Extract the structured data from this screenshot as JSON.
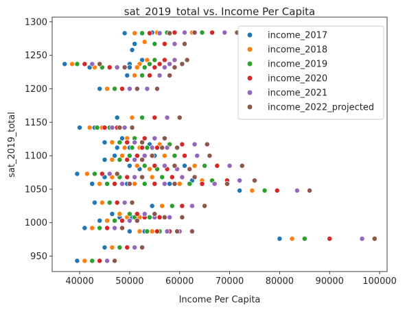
{
  "chart_data": {
    "type": "scatter",
    "title": "sat_2019_total vs. Income Per Capita",
    "xlabel": "Income Per Capita",
    "ylabel": "sat_2019_total",
    "xlim": [
      34500,
      101500
    ],
    "ylim": [
      927,
      1307
    ],
    "xticks": [
      40000,
      50000,
      60000,
      70000,
      80000,
      90000,
      100000
    ],
    "yticks": [
      950,
      1000,
      1050,
      1100,
      1150,
      1200,
      1250,
      1300
    ],
    "legend_position": "upper-right",
    "grid": false,
    "series": [
      {
        "name": "income_2017",
        "color": "#1f77b4",
        "points": [
          [
            49000,
            1283
          ],
          [
            51000,
            1267
          ],
          [
            50500,
            1258
          ],
          [
            54500,
            1284
          ],
          [
            61000,
            1284
          ],
          [
            52500,
            1243
          ],
          [
            50000,
            1237
          ],
          [
            37000,
            1237
          ],
          [
            42000,
            1232
          ],
          [
            50000,
            1232
          ],
          [
            49500,
            1220
          ],
          [
            44000,
            1200
          ],
          [
            47000,
            1200
          ],
          [
            47500,
            1157
          ],
          [
            40000,
            1142
          ],
          [
            43000,
            1142
          ],
          [
            48500,
            1126
          ],
          [
            45000,
            1120
          ],
          [
            47500,
            1112
          ],
          [
            50000,
            1112
          ],
          [
            54000,
            1117
          ],
          [
            47000,
            1100
          ],
          [
            55000,
            1100
          ],
          [
            45000,
            1094
          ],
          [
            50000,
            1085
          ],
          [
            52000,
            1080
          ],
          [
            61000,
            1085
          ],
          [
            45000,
            1068
          ],
          [
            52500,
            1068
          ],
          [
            39500,
            1073
          ],
          [
            42500,
            1058
          ],
          [
            49500,
            1058
          ],
          [
            58000,
            1058
          ],
          [
            62500,
            1063
          ],
          [
            72000,
            1048
          ],
          [
            43000,
            1030
          ],
          [
            46500,
            1013
          ],
          [
            54500,
            1025
          ],
          [
            48000,
            1008
          ],
          [
            50500,
            1008
          ],
          [
            44000,
            1003
          ],
          [
            41000,
            992
          ],
          [
            50000,
            987
          ],
          [
            53000,
            987
          ],
          [
            80000,
            976
          ],
          [
            45000,
            963
          ],
          [
            39500,
            943
          ]
        ]
      },
      {
        "name": "income_2018",
        "color": "#ff7f0e",
        "points": [
          [
            51000,
            1283
          ],
          [
            53000,
            1270
          ],
          [
            55500,
            1284
          ],
          [
            62500,
            1284
          ],
          [
            53500,
            1243
          ],
          [
            52000,
            1237
          ],
          [
            38500,
            1237
          ],
          [
            43000,
            1232
          ],
          [
            51500,
            1232
          ],
          [
            51000,
            1220
          ],
          [
            45500,
            1200
          ],
          [
            48500,
            1200
          ],
          [
            50500,
            1157
          ],
          [
            42000,
            1142
          ],
          [
            44500,
            1142
          ],
          [
            49500,
            1126
          ],
          [
            46500,
            1120
          ],
          [
            49000,
            1112
          ],
          [
            52000,
            1112
          ],
          [
            56000,
            1117
          ],
          [
            48500,
            1100
          ],
          [
            57000,
            1100
          ],
          [
            46500,
            1094
          ],
          [
            51500,
            1085
          ],
          [
            54000,
            1080
          ],
          [
            63000,
            1085
          ],
          [
            46500,
            1068
          ],
          [
            54500,
            1068
          ],
          [
            41500,
            1073
          ],
          [
            44000,
            1058
          ],
          [
            51000,
            1058
          ],
          [
            60000,
            1058
          ],
          [
            64500,
            1063
          ],
          [
            74500,
            1048
          ],
          [
            44500,
            1030
          ],
          [
            48000,
            1013
          ],
          [
            56500,
            1025
          ],
          [
            49500,
            1008
          ],
          [
            52000,
            1008
          ],
          [
            45500,
            1003
          ],
          [
            42500,
            992
          ],
          [
            52000,
            987
          ],
          [
            54500,
            987
          ],
          [
            82500,
            976
          ],
          [
            46500,
            963
          ],
          [
            41000,
            943
          ]
        ]
      },
      {
        "name": "income_2019",
        "color": "#2ca02c",
        "points": [
          [
            52500,
            1283
          ],
          [
            55000,
            1267
          ],
          [
            57500,
            1284
          ],
          [
            64500,
            1284
          ],
          [
            55000,
            1243
          ],
          [
            54000,
            1237
          ],
          [
            39500,
            1237
          ],
          [
            44500,
            1232
          ],
          [
            53000,
            1232
          ],
          [
            52500,
            1220
          ],
          [
            47000,
            1200
          ],
          [
            50000,
            1200
          ],
          [
            52500,
            1157
          ],
          [
            43500,
            1142
          ],
          [
            46000,
            1142
          ],
          [
            51000,
            1126
          ],
          [
            48000,
            1120
          ],
          [
            50500,
            1112
          ],
          [
            53500,
            1112
          ],
          [
            58000,
            1117
          ],
          [
            50000,
            1100
          ],
          [
            59000,
            1100
          ],
          [
            48000,
            1094
          ],
          [
            53000,
            1085
          ],
          [
            55500,
            1080
          ],
          [
            65000,
            1085
          ],
          [
            48000,
            1068
          ],
          [
            56500,
            1068
          ],
          [
            43000,
            1073
          ],
          [
            45500,
            1058
          ],
          [
            53000,
            1058
          ],
          [
            62000,
            1058
          ],
          [
            66500,
            1063
          ],
          [
            77000,
            1048
          ],
          [
            46000,
            1030
          ],
          [
            50000,
            1013
          ],
          [
            58500,
            1025
          ],
          [
            51000,
            1008
          ],
          [
            54000,
            1008
          ],
          [
            47000,
            1003
          ],
          [
            44000,
            992
          ],
          [
            53500,
            987
          ],
          [
            56000,
            987
          ],
          [
            85000,
            976
          ],
          [
            48000,
            963
          ],
          [
            42500,
            943
          ]
        ]
      },
      {
        "name": "income_2020",
        "color": "#d62728",
        "points": [
          [
            54000,
            1283
          ],
          [
            57000,
            1267
          ],
          [
            59000,
            1284
          ],
          [
            66500,
            1284
          ],
          [
            57000,
            1243
          ],
          [
            56000,
            1237
          ],
          [
            41000,
            1237
          ],
          [
            46000,
            1232
          ],
          [
            55000,
            1232
          ],
          [
            54000,
            1220
          ],
          [
            48500,
            1200
          ],
          [
            51500,
            1200
          ],
          [
            55000,
            1157
          ],
          [
            45000,
            1142
          ],
          [
            47500,
            1142
          ],
          [
            53000,
            1126
          ],
          [
            49500,
            1120
          ],
          [
            52500,
            1112
          ],
          [
            55500,
            1112
          ],
          [
            60500,
            1117
          ],
          [
            51500,
            1100
          ],
          [
            61000,
            1100
          ],
          [
            49500,
            1094
          ],
          [
            55000,
            1085
          ],
          [
            57500,
            1080
          ],
          [
            67500,
            1085
          ],
          [
            49500,
            1068
          ],
          [
            58500,
            1068
          ],
          [
            44500,
            1073
          ],
          [
            47000,
            1058
          ],
          [
            55000,
            1058
          ],
          [
            64500,
            1058
          ],
          [
            69500,
            1063
          ],
          [
            79500,
            1048
          ],
          [
            47500,
            1030
          ],
          [
            51500,
            1013
          ],
          [
            60500,
            1025
          ],
          [
            53000,
            1008
          ],
          [
            56000,
            1008
          ],
          [
            48500,
            1003
          ],
          [
            45500,
            992
          ],
          [
            55500,
            987
          ],
          [
            58000,
            987
          ],
          [
            90000,
            976
          ],
          [
            49500,
            963
          ],
          [
            44000,
            943
          ]
        ]
      },
      {
        "name": "income_2021",
        "color": "#9467bd",
        "points": [
          [
            56000,
            1283
          ],
          [
            59000,
            1267
          ],
          [
            61000,
            1284
          ],
          [
            69000,
            1284
          ],
          [
            59000,
            1243
          ],
          [
            58000,
            1237
          ],
          [
            42500,
            1237
          ],
          [
            47500,
            1232
          ],
          [
            57000,
            1232
          ],
          [
            56000,
            1220
          ],
          [
            50000,
            1200
          ],
          [
            53500,
            1200
          ],
          [
            57500,
            1157
          ],
          [
            46500,
            1142
          ],
          [
            49000,
            1142
          ],
          [
            55000,
            1126
          ],
          [
            51000,
            1120
          ],
          [
            54500,
            1112
          ],
          [
            57500,
            1112
          ],
          [
            63000,
            1117
          ],
          [
            53000,
            1100
          ],
          [
            63500,
            1100
          ],
          [
            51000,
            1094
          ],
          [
            57000,
            1085
          ],
          [
            59500,
            1080
          ],
          [
            70000,
            1085
          ],
          [
            51000,
            1068
          ],
          [
            60500,
            1068
          ],
          [
            46000,
            1073
          ],
          [
            48500,
            1058
          ],
          [
            57000,
            1058
          ],
          [
            67000,
            1058
          ],
          [
            72000,
            1063
          ],
          [
            83500,
            1048
          ],
          [
            49000,
            1030
          ],
          [
            53000,
            1013
          ],
          [
            62500,
            1025
          ],
          [
            55000,
            1008
          ],
          [
            58000,
            1008
          ],
          [
            50000,
            1003
          ],
          [
            47000,
            992
          ],
          [
            57500,
            987
          ],
          [
            60000,
            987
          ],
          [
            96500,
            976
          ],
          [
            51000,
            963
          ],
          [
            45500,
            943
          ]
        ]
      },
      {
        "name": "income_2022_projected",
        "color": "#8c564b",
        "points": [
          [
            58000,
            1283
          ],
          [
            61000,
            1267
          ],
          [
            63000,
            1284
          ],
          [
            71500,
            1284
          ],
          [
            61500,
            1243
          ],
          [
            60500,
            1237
          ],
          [
            44000,
            1237
          ],
          [
            49000,
            1232
          ],
          [
            59000,
            1232
          ],
          [
            58000,
            1220
          ],
          [
            51500,
            1200
          ],
          [
            55500,
            1200
          ],
          [
            60000,
            1157
          ],
          [
            48000,
            1142
          ],
          [
            50500,
            1142
          ],
          [
            57000,
            1126
          ],
          [
            52500,
            1120
          ],
          [
            56500,
            1112
          ],
          [
            59500,
            1112
          ],
          [
            65500,
            1117
          ],
          [
            54500,
            1100
          ],
          [
            66000,
            1100
          ],
          [
            52500,
            1094
          ],
          [
            59000,
            1085
          ],
          [
            62000,
            1080
          ],
          [
            72500,
            1085
          ],
          [
            52500,
            1068
          ],
          [
            63000,
            1068
          ],
          [
            47500,
            1073
          ],
          [
            50000,
            1058
          ],
          [
            59000,
            1058
          ],
          [
            69500,
            1058
          ],
          [
            75000,
            1063
          ],
          [
            86000,
            1048
          ],
          [
            50500,
            1030
          ],
          [
            55000,
            1013
          ],
          [
            65000,
            1025
          ],
          [
            57000,
            1008
          ],
          [
            60500,
            1008
          ],
          [
            51500,
            1003
          ],
          [
            48500,
            992
          ],
          [
            59500,
            987
          ],
          [
            62500,
            987
          ],
          [
            99000,
            976
          ],
          [
            52500,
            963
          ],
          [
            47000,
            943
          ]
        ]
      }
    ]
  }
}
